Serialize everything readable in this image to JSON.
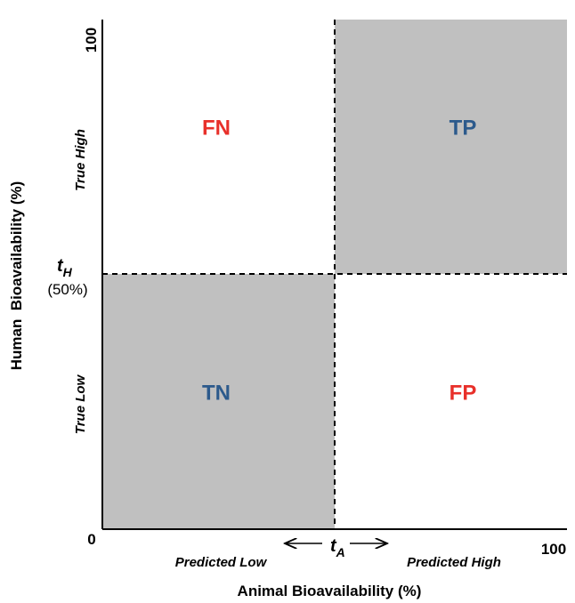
{
  "axes": {
    "x_label": "Animal Bioavailability (%)",
    "y_label": "Human  Bioavailability (%)",
    "origin": 0,
    "x_max": 100,
    "y_max": 100
  },
  "thresholds": {
    "h_symbol": "t",
    "h_sub": "H",
    "h_value": "(50%)",
    "a_symbol": "t",
    "a_sub": "A"
  },
  "regions": {
    "true_high": "True High",
    "true_low": "True Low",
    "predicted_low": "Predicted Low",
    "predicted_high": "Predicted High"
  },
  "quadrants": {
    "fn": "FN",
    "tp": "TP",
    "tn": "TN",
    "fp": "FP"
  }
}
